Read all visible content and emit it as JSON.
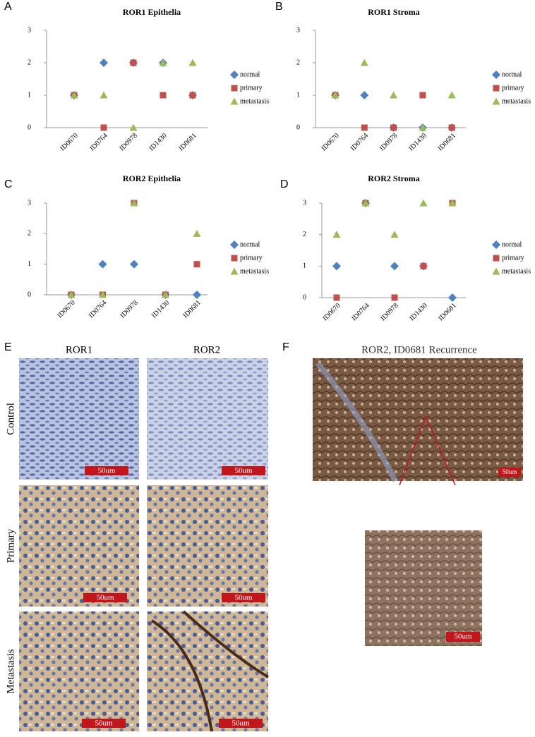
{
  "chart_data": [
    {
      "type": "scatter",
      "label": "A",
      "title": "ROR1 Epithelia",
      "categories": [
        "ID0670",
        "ID0764",
        "ID0978",
        "ID1430",
        "ID0681"
      ],
      "series": [
        {
          "name": "normal",
          "color": "#4f81bd",
          "marker": "diamond",
          "values": [
            1,
            2,
            2,
            2,
            1
          ]
        },
        {
          "name": "primary",
          "color": "#c0504d",
          "marker": "square",
          "values": [
            1,
            0,
            2,
            1,
            1
          ]
        },
        {
          "name": "metastasis",
          "color": "#9bbb59",
          "marker": "triangle",
          "values": [
            1,
            1,
            0,
            2,
            2
          ]
        }
      ],
      "ylim": [
        0,
        3
      ],
      "yticks": [
        0,
        1,
        2,
        3
      ],
      "legend": "right"
    },
    {
      "type": "scatter",
      "label": "B",
      "title": "ROR1 Stroma",
      "categories": [
        "ID0670",
        "ID0764",
        "ID0978",
        "ID1430",
        "ID0681"
      ],
      "series": [
        {
          "name": "normal",
          "color": "#4f81bd",
          "marker": "diamond",
          "values": [
            1,
            1,
            0,
            0,
            0
          ]
        },
        {
          "name": "primary",
          "color": "#c0504d",
          "marker": "square",
          "values": [
            1,
            0,
            0,
            1,
            0
          ]
        },
        {
          "name": "metastasis",
          "color": "#9bbb59",
          "marker": "triangle",
          "values": [
            1,
            2,
            1,
            0,
            1
          ]
        }
      ],
      "ylim": [
        0,
        3
      ],
      "yticks": [
        0,
        1,
        2,
        3
      ],
      "legend": "right"
    },
    {
      "type": "scatter",
      "label": "C",
      "title": "ROR2 Epithelia",
      "categories": [
        "ID0670",
        "ID0764",
        "ID0978",
        "ID1430",
        "ID0681"
      ],
      "series": [
        {
          "name": "normal",
          "color": "#4f81bd",
          "marker": "diamond",
          "values": [
            0,
            1,
            1,
            0,
            0
          ]
        },
        {
          "name": "primary",
          "color": "#c0504d",
          "marker": "square",
          "values": [
            0,
            0,
            3,
            0,
            1
          ]
        },
        {
          "name": "metastasis",
          "color": "#9bbb59",
          "marker": "triangle",
          "values": [
            0,
            0,
            3,
            0,
            2
          ]
        }
      ],
      "ylim": [
        0,
        3
      ],
      "yticks": [
        0,
        1,
        2,
        3
      ],
      "legend": "right"
    },
    {
      "type": "scatter",
      "label": "D",
      "title": "ROR2 Stroma",
      "categories": [
        "ID0670",
        "ID0764",
        "ID0978",
        "ID1430",
        "ID0681"
      ],
      "series": [
        {
          "name": "normal",
          "color": "#4f81bd",
          "marker": "diamond",
          "values": [
            1,
            3,
            1,
            1,
            0
          ]
        },
        {
          "name": "primary",
          "color": "#c0504d",
          "marker": "square",
          "values": [
            0,
            3,
            0,
            1,
            3
          ]
        },
        {
          "name": "metastasis",
          "color": "#9bbb59",
          "marker": "triangle",
          "values": [
            2,
            3,
            2,
            3,
            3
          ]
        }
      ],
      "ylim": [
        0,
        3
      ],
      "yticks": [
        0,
        1,
        2,
        3
      ],
      "legend": "right"
    }
  ],
  "figure_e": {
    "label": "E",
    "columns": [
      "ROR1",
      "ROR2"
    ],
    "rows": [
      "Control",
      "Primary",
      "Metastasis"
    ],
    "scale_bar": "50um"
  },
  "figure_f": {
    "label": "F",
    "title": "ROR2, ID0681 Recurrence",
    "scale_bar": "50um"
  }
}
